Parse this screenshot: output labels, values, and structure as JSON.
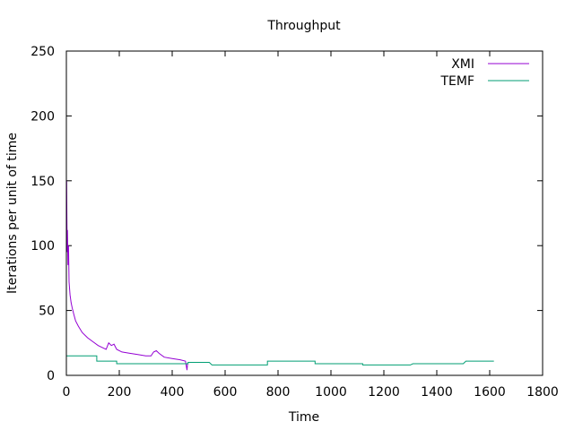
{
  "chart_data": {
    "type": "line",
    "title": "Throughput",
    "xlabel": "Time",
    "ylabel": "Iterations per unit of time",
    "xlim": [
      0,
      1800
    ],
    "ylim": [
      0,
      250
    ],
    "xticks": [
      0,
      200,
      400,
      600,
      800,
      1000,
      1200,
      1400,
      1600,
      1800
    ],
    "yticks": [
      0,
      50,
      100,
      150,
      200,
      250
    ],
    "xtick_labels": [
      "0",
      "200",
      "400",
      "600",
      "800",
      "1000",
      "1200",
      "1400",
      "1600",
      "1800"
    ],
    "ytick_labels": [
      "0",
      "50",
      "100",
      "150",
      "200",
      "250"
    ],
    "grid": false,
    "legend_position": "top-right",
    "series": [
      {
        "name": "XMI",
        "color": "#9400d3",
        "points": [
          [
            1,
            150
          ],
          [
            2,
            120
          ],
          [
            3,
            95
          ],
          [
            4,
            112
          ],
          [
            6,
            85
          ],
          [
            8,
            100
          ],
          [
            10,
            72
          ],
          [
            14,
            62
          ],
          [
            18,
            56
          ],
          [
            22,
            52
          ],
          [
            28,
            47
          ],
          [
            35,
            42
          ],
          [
            45,
            38
          ],
          [
            60,
            33
          ],
          [
            80,
            29
          ],
          [
            100,
            26
          ],
          [
            120,
            23
          ],
          [
            140,
            21
          ],
          [
            150,
            20
          ],
          [
            160,
            25
          ],
          [
            170,
            23
          ],
          [
            180,
            24
          ],
          [
            190,
            20
          ],
          [
            210,
            18
          ],
          [
            240,
            17
          ],
          [
            270,
            16
          ],
          [
            300,
            15
          ],
          [
            320,
            15
          ],
          [
            330,
            18
          ],
          [
            340,
            19
          ],
          [
            350,
            17
          ],
          [
            370,
            14
          ],
          [
            400,
            13
          ],
          [
            430,
            12
          ],
          [
            450,
            11
          ],
          [
            456,
            4
          ],
          [
            458,
            9
          ]
        ]
      },
      {
        "name": "TEMF",
        "color": "#009e73",
        "points": [
          [
            0,
            15
          ],
          [
            115,
            15
          ],
          [
            115,
            11
          ],
          [
            190,
            11
          ],
          [
            190,
            9
          ],
          [
            460,
            9
          ],
          [
            460,
            10
          ],
          [
            540,
            10
          ],
          [
            550,
            8
          ],
          [
            760,
            8
          ],
          [
            760,
            11
          ],
          [
            940,
            11
          ],
          [
            940,
            9
          ],
          [
            1120,
            9
          ],
          [
            1120,
            8
          ],
          [
            1300,
            8
          ],
          [
            1310,
            9
          ],
          [
            1500,
            9
          ],
          [
            1510,
            11
          ],
          [
            1616,
            11
          ]
        ]
      }
    ]
  }
}
